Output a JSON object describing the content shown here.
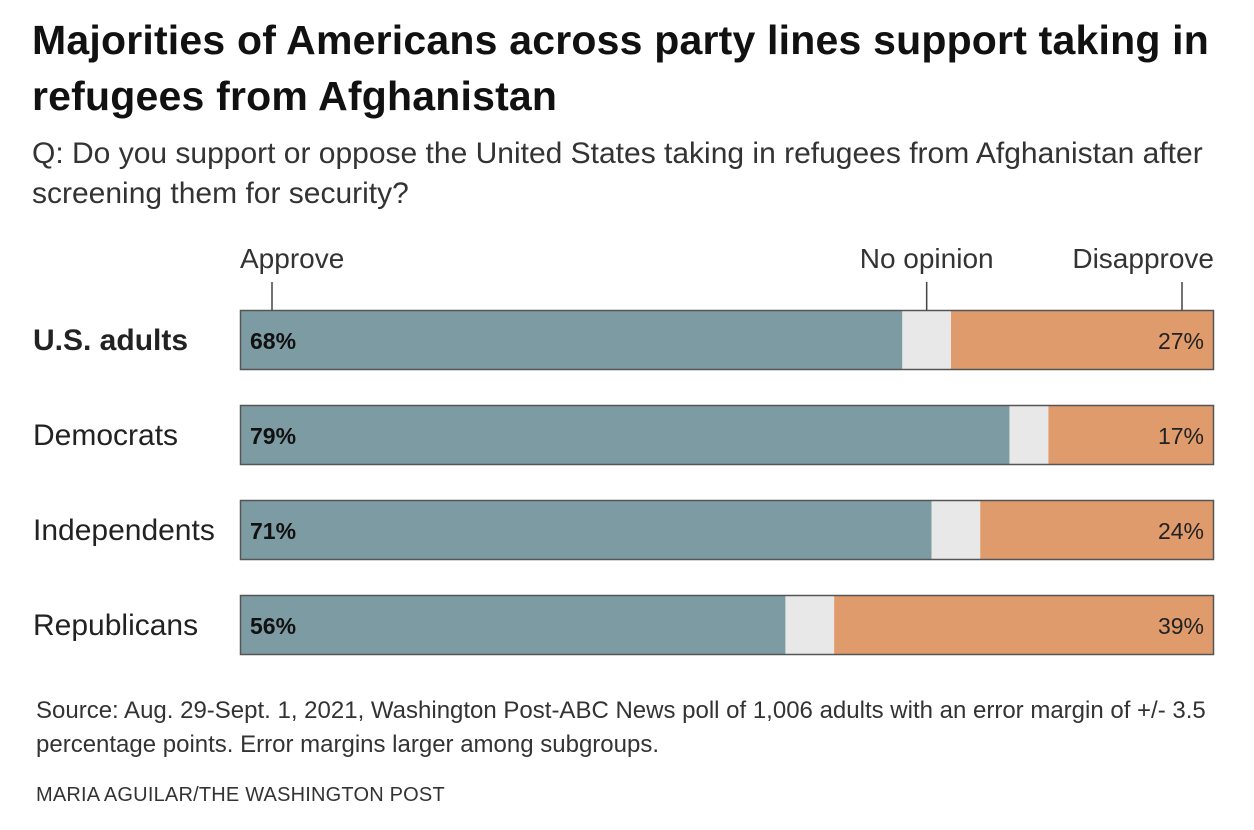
{
  "header": {
    "title": "Majorities of Americans across party lines support taking in refugees from Afghanistan",
    "subtitle": "Q: Do you support or oppose the United States taking in refugees from Afghanistan after screening them for security?"
  },
  "footer": {
    "source": "Source: Aug. 29-Sept. 1, 2021, Washington Post-ABC News poll of 1,006 adults with an error margin of +/- 3.5 percentage points. Error margins larger among subgroups.",
    "credit": "MARIA AGUILAR/THE WASHINGTON POST"
  },
  "colors": {
    "approve": "#7d9ba2",
    "no_opinion": "#e8e8e8",
    "disapprove": "#df9b6c",
    "stroke": "#555555"
  },
  "chart_data": {
    "type": "bar",
    "orientation": "horizontal",
    "stacked": true,
    "title": "Majorities of Americans across party lines support taking in refugees from Afghanistan",
    "xlim": [
      0,
      100
    ],
    "unit": "%",
    "categories": [
      "U.S. adults",
      "Democrats",
      "Independents",
      "Republicans"
    ],
    "emphasized_category": "U.S. adults",
    "series": [
      {
        "name": "Approve",
        "values": [
          68,
          79,
          71,
          56
        ],
        "labels": [
          "68%",
          "79%",
          "71%",
          "56%"
        ]
      },
      {
        "name": "No opinion",
        "values": [
          5,
          4,
          5,
          5
        ],
        "labels": [
          "",
          "",
          "",
          ""
        ]
      },
      {
        "name": "Disapprove",
        "values": [
          27,
          17,
          24,
          39
        ],
        "labels": [
          "27%",
          "17%",
          "24%",
          "39%"
        ]
      }
    ],
    "legend_placement": "top, above first bar"
  }
}
